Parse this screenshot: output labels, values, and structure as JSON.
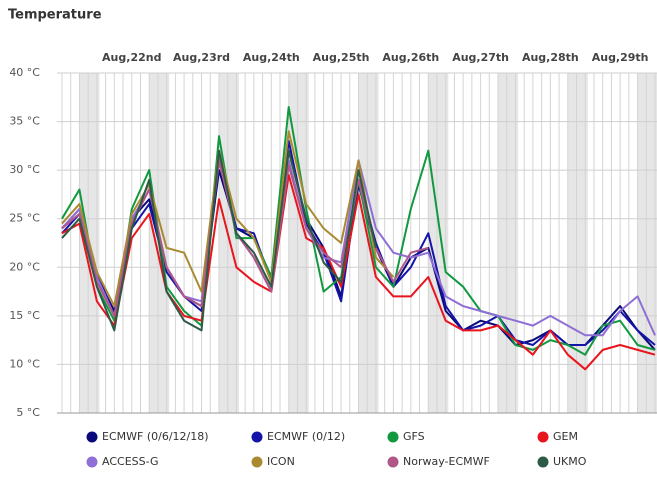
{
  "chart_data": {
    "type": "line",
    "title": "Temperature",
    "categories": [
      null,
      null,
      null,
      null,
      "Aug,22nd",
      null,
      null,
      null,
      "Aug,23rd",
      null,
      null,
      null,
      "Aug,24th",
      null,
      null,
      null,
      "Aug,25th",
      null,
      null,
      null,
      "Aug,26th",
      null,
      null,
      null,
      "Aug,27th",
      null,
      null,
      null,
      "Aug,28th",
      null,
      null,
      null,
      "Aug,29th",
      null,
      null
    ],
    "ylim": [
      5,
      40
    ],
    "yticks": [
      {
        "value": 5,
        "label": "5 °C"
      },
      {
        "value": 10,
        "label": "10 °C"
      },
      {
        "value": 15,
        "label": "15 °C"
      },
      {
        "value": 20,
        "label": "20 °C"
      },
      {
        "value": 25,
        "label": "25 °C"
      },
      {
        "value": 30,
        "label": "30 °C"
      },
      {
        "value": 35,
        "label": "35 °C"
      },
      {
        "value": 40,
        "label": "40 °C"
      }
    ],
    "grid": true,
    "series": [
      {
        "name": "ECMWF (0/6/12/18)",
        "color": "#0a0a7a",
        "values": [
          24,
          26,
          19,
          15.5,
          25,
          27,
          20,
          17,
          16,
          30,
          24,
          23,
          19,
          32,
          25,
          22,
          17,
          28.5,
          22,
          18,
          21,
          22,
          15.5,
          13.5,
          14.5,
          14,
          12,
          12.5,
          13.5,
          12,
          12,
          14,
          16,
          13.5,
          11.5
        ]
      },
      {
        "name": "ECMWF (0/12)",
        "color": "#1414a8",
        "values": [
          23.5,
          25.5,
          19.5,
          15,
          24,
          26.5,
          19.5,
          17,
          15.5,
          31,
          24,
          23.5,
          18.5,
          33,
          24.5,
          21.5,
          16.5,
          29,
          22.5,
          18,
          20,
          23.5,
          16,
          13.5,
          14,
          15,
          12.5,
          12,
          13.5,
          12,
          12,
          13.5,
          15.5,
          13.5,
          12
        ]
      },
      {
        "name": "GFS",
        "color": "#12993f",
        "values": [
          25,
          28,
          18,
          14.5,
          26,
          30,
          18,
          15.5,
          14,
          33.5,
          23,
          23,
          19,
          36.5,
          26,
          17.5,
          19,
          29,
          20,
          18,
          26,
          32,
          19.5,
          18,
          15.5,
          15,
          12,
          11.5,
          12.5,
          12,
          11,
          14,
          14.5,
          12,
          11.5
        ]
      },
      {
        "name": "GEM",
        "color": "#e8141e",
        "values": [
          23.5,
          24.5,
          16.5,
          14,
          23,
          25.5,
          17.5,
          15,
          14.5,
          27,
          20,
          18.5,
          17.5,
          29.5,
          23,
          22,
          18,
          27.5,
          19,
          17,
          17,
          19,
          14.5,
          13.5,
          13.5,
          14,
          12.5,
          11,
          13.5,
          11,
          9.5,
          11.5,
          12,
          11.5,
          11
        ]
      },
      {
        "name": "ACCESS-G",
        "color": "#8f6fd6",
        "values": [
          24,
          26,
          19,
          15,
          25,
          28,
          20,
          17,
          16.5,
          31.5,
          23.5,
          21,
          17.5,
          31,
          24,
          21,
          20.5,
          31,
          24,
          21.5,
          21,
          21.5,
          17,
          16,
          15.5,
          15,
          14.5,
          14,
          15,
          14,
          13,
          13,
          15.5,
          17,
          13
        ]
      },
      {
        "name": "ICON",
        "color": "#a98a30",
        "values": [
          24.5,
          26.5,
          19.5,
          16,
          25.5,
          28.5,
          22,
          21.5,
          17.5,
          32,
          25,
          23,
          18.5,
          34,
          26.5,
          24,
          22.5,
          31,
          21,
          19,
          null,
          null,
          null,
          null,
          null,
          null,
          null,
          null,
          null,
          null,
          null,
          null,
          null,
          null,
          null
        ]
      },
      {
        "name": "Norway-ECMWF",
        "color": "#b0578a",
        "values": [
          24,
          25.5,
          18.5,
          15,
          24.5,
          28,
          20,
          17,
          16,
          31,
          23.5,
          21,
          17.5,
          30.5,
          24,
          21.5,
          20,
          29,
          22,
          18.5,
          21.5,
          22,
          null,
          null,
          null,
          null,
          null,
          null,
          null,
          null,
          null,
          null,
          null,
          null,
          null
        ]
      },
      {
        "name": "UKMO",
        "color": "#2c5a45",
        "values": [
          23,
          25,
          18,
          13.5,
          24,
          29,
          17.5,
          14.5,
          13.5,
          32,
          23.5,
          21.5,
          18,
          32,
          25,
          20.5,
          18.5,
          30,
          22,
          null,
          null,
          null,
          null,
          null,
          null,
          null,
          null,
          null,
          null,
          null,
          null,
          null,
          null,
          null,
          null
        ]
      }
    ]
  }
}
